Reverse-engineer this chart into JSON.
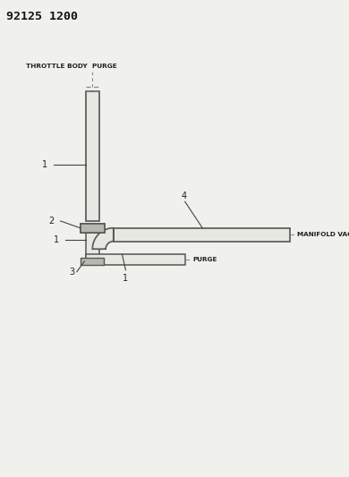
{
  "title": "92125 1200",
  "background_color": "#f0f0ec",
  "fig_width": 3.9,
  "fig_height": 5.33,
  "dpi": 100,
  "labels": {
    "throttle_body_purge": "THROTTLE BODY  PURGE",
    "manifold_vacuum": "MANIFOLD VACUUM",
    "purge": "PURGE",
    "p1": "1",
    "p2": "2",
    "p3": "3",
    "p4": "4"
  },
  "colors": {
    "hose_fill": "#e8e8e2",
    "hose_outline": "#555555",
    "connector_fill": "#b8b8b0",
    "text": "#222222",
    "title_text": "#111111",
    "leader": "#444444",
    "dashed": "#888888"
  }
}
